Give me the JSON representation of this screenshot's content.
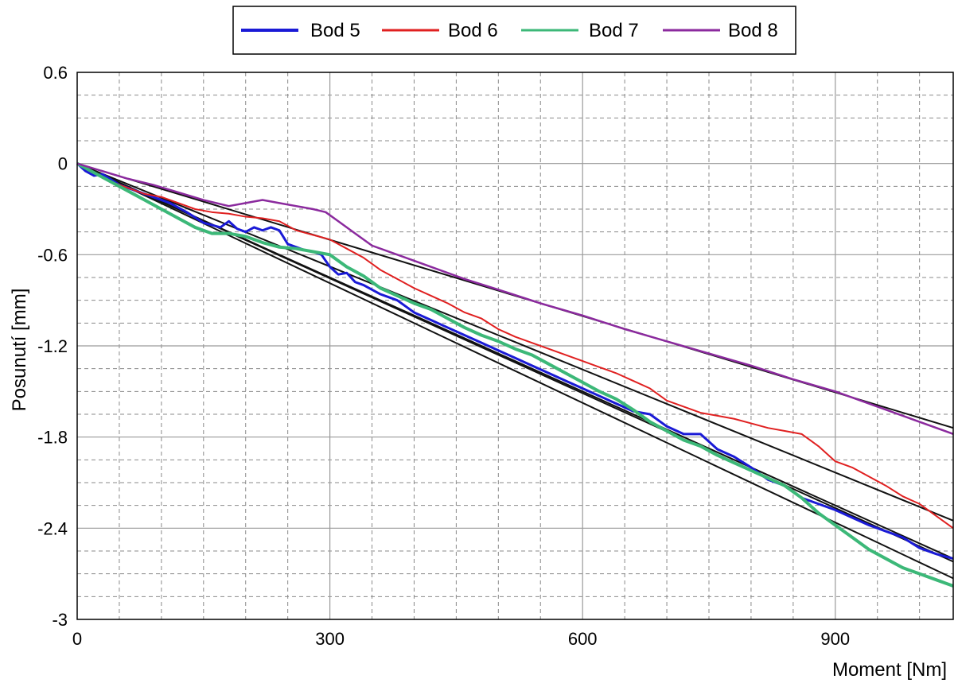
{
  "chart_data": {
    "type": "line",
    "title": "",
    "xlabel": "Moment [Nm]",
    "ylabel": "Posunutí [mm]",
    "xlim": [
      0,
      1040
    ],
    "ylim": [
      -3,
      0.6
    ],
    "x_ticks": [
      0,
      300,
      600,
      900
    ],
    "y_ticks": [
      0.6,
      0,
      -0.6,
      -1.2,
      -1.8,
      -2.4,
      -3
    ],
    "y_tick_labels": [
      "0.6",
      "0",
      "-0.6",
      "-1.2",
      "-1.8",
      "-2.4",
      "-3"
    ],
    "x_tick_labels": [
      "0",
      "300",
      "600",
      "900"
    ],
    "grid": true,
    "legend_position": "top-center",
    "series": [
      {
        "name": "Bod 5",
        "color": "#1a1ad6",
        "x": [
          0,
          10,
          20,
          30,
          50,
          70,
          90,
          110,
          130,
          150,
          170,
          180,
          190,
          200,
          210,
          220,
          230,
          240,
          250,
          260,
          270,
          280,
          290,
          300,
          310,
          320,
          330,
          340,
          350,
          360,
          370,
          380,
          390,
          400,
          420,
          440,
          460,
          480,
          500,
          520,
          540,
          560,
          580,
          600,
          620,
          640,
          660,
          680,
          700,
          720,
          740,
          760,
          780,
          800,
          820,
          840,
          860,
          880,
          900,
          920,
          940,
          960,
          980,
          1000,
          1020,
          1040
        ],
        "y": [
          0,
          -0.05,
          -0.08,
          -0.07,
          -0.14,
          -0.18,
          -0.22,
          -0.26,
          -0.32,
          -0.39,
          -0.42,
          -0.38,
          -0.43,
          -0.45,
          -0.42,
          -0.44,
          -0.42,
          -0.44,
          -0.53,
          -0.55,
          -0.57,
          -0.58,
          -0.6,
          -0.68,
          -0.73,
          -0.72,
          -0.78,
          -0.8,
          -0.83,
          -0.86,
          -0.88,
          -0.9,
          -0.94,
          -0.98,
          -1.03,
          -1.08,
          -1.13,
          -1.18,
          -1.23,
          -1.28,
          -1.33,
          -1.38,
          -1.43,
          -1.48,
          -1.53,
          -1.58,
          -1.63,
          -1.65,
          -1.73,
          -1.78,
          -1.78,
          -1.88,
          -1.93,
          -2.0,
          -2.08,
          -2.12,
          -2.2,
          -2.24,
          -2.28,
          -2.33,
          -2.38,
          -2.42,
          -2.46,
          -2.53,
          -2.57,
          -2.6
        ]
      },
      {
        "name": "Bod 6",
        "color": "#e02020",
        "x": [
          0,
          20,
          40,
          60,
          80,
          100,
          120,
          140,
          160,
          180,
          200,
          220,
          240,
          260,
          280,
          300,
          320,
          340,
          360,
          380,
          400,
          420,
          440,
          460,
          480,
          500,
          520,
          540,
          560,
          580,
          600,
          620,
          640,
          660,
          680,
          700,
          720,
          740,
          760,
          780,
          800,
          820,
          840,
          860,
          880,
          900,
          920,
          940,
          960,
          980,
          1000,
          1020,
          1040
        ],
        "y": [
          0,
          -0.06,
          -0.12,
          -0.16,
          -0.2,
          -0.22,
          -0.26,
          -0.3,
          -0.32,
          -0.33,
          -0.35,
          -0.36,
          -0.38,
          -0.44,
          -0.47,
          -0.5,
          -0.56,
          -0.62,
          -0.7,
          -0.76,
          -0.82,
          -0.87,
          -0.92,
          -0.98,
          -1.02,
          -1.09,
          -1.14,
          -1.18,
          -1.22,
          -1.26,
          -1.3,
          -1.34,
          -1.38,
          -1.43,
          -1.48,
          -1.56,
          -1.6,
          -1.64,
          -1.66,
          -1.68,
          -1.71,
          -1.74,
          -1.76,
          -1.78,
          -1.86,
          -1.96,
          -2.0,
          -2.06,
          -2.12,
          -2.19,
          -2.24,
          -2.32,
          -2.4
        ]
      },
      {
        "name": "Bod 7",
        "color": "#3cb878",
        "x": [
          0,
          20,
          40,
          60,
          80,
          100,
          120,
          140,
          160,
          180,
          200,
          220,
          240,
          260,
          280,
          300,
          320,
          340,
          360,
          380,
          400,
          420,
          440,
          460,
          480,
          500,
          520,
          540,
          560,
          580,
          600,
          620,
          640,
          660,
          680,
          700,
          720,
          740,
          760,
          780,
          800,
          820,
          840,
          860,
          880,
          900,
          920,
          940,
          960,
          980,
          1000,
          1020,
          1040
        ],
        "y": [
          0,
          -0.06,
          -0.12,
          -0.18,
          -0.24,
          -0.3,
          -0.36,
          -0.42,
          -0.46,
          -0.46,
          -0.48,
          -0.52,
          -0.55,
          -0.56,
          -0.58,
          -0.6,
          -0.68,
          -0.74,
          -0.82,
          -0.87,
          -0.92,
          -0.96,
          -1.02,
          -1.08,
          -1.13,
          -1.17,
          -1.22,
          -1.26,
          -1.32,
          -1.38,
          -1.44,
          -1.5,
          -1.55,
          -1.62,
          -1.7,
          -1.76,
          -1.82,
          -1.86,
          -1.92,
          -1.97,
          -2.02,
          -2.07,
          -2.12,
          -2.2,
          -2.3,
          -2.38,
          -2.46,
          -2.54,
          -2.6,
          -2.66,
          -2.7,
          -2.74,
          -2.78
        ]
      },
      {
        "name": "Bod 8",
        "color": "#8b2a9e",
        "x": [
          0,
          30,
          60,
          90,
          120,
          150,
          180,
          200,
          220,
          240,
          260,
          280,
          295,
          310,
          330,
          350,
          380,
          400,
          430,
          460,
          500,
          550,
          600,
          650,
          700,
          750,
          800,
          850,
          900,
          950,
          1000,
          1040
        ],
        "y": [
          0,
          -0.05,
          -0.1,
          -0.14,
          -0.19,
          -0.24,
          -0.28,
          -0.26,
          -0.24,
          -0.26,
          -0.28,
          -0.3,
          -0.32,
          -0.38,
          -0.46,
          -0.54,
          -0.6,
          -0.64,
          -0.7,
          -0.76,
          -0.83,
          -0.92,
          -1.0,
          -1.09,
          -1.17,
          -1.25,
          -1.33,
          -1.42,
          -1.5,
          -1.6,
          -1.7,
          -1.78
        ]
      }
    ],
    "fit_lines": [
      {
        "x": [
          0,
          1040
        ],
        "y": [
          0,
          -2.6
        ]
      },
      {
        "x": [
          0,
          1040
        ],
        "y": [
          0,
          -2.35
        ]
      },
      {
        "x": [
          0,
          1040
        ],
        "y": [
          0,
          -2.73
        ]
      },
      {
        "x": [
          0,
          1040
        ],
        "y": [
          0,
          -1.74
        ]
      },
      {
        "x": [
          0,
          1040
        ],
        "y": [
          0,
          -2.62
        ]
      }
    ]
  }
}
